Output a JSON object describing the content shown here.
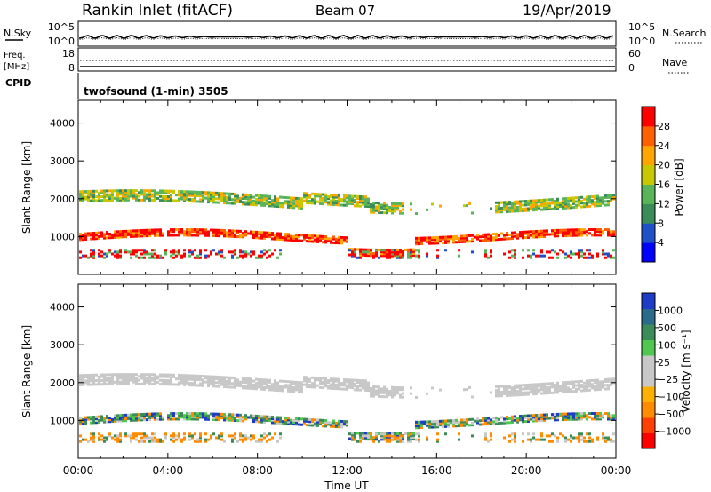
{
  "header": {
    "station": "Rankin Inlet (fitACF)",
    "beam": "Beam 07",
    "date": "19/Apr/2019"
  },
  "noise_panel": {
    "left_label": "N.Sky",
    "left_ticks": [
      "10^5",
      "10^0"
    ],
    "right_ticks": [
      "10^5",
      "10^0"
    ],
    "right_label": "N.Search"
  },
  "freq_panel": {
    "label_line1": "Freq.",
    "label_line2": "[MHz]",
    "left_ticks": [
      "18",
      "8"
    ],
    "right_ticks": [
      "60",
      "0"
    ],
    "right_label": "Nave"
  },
  "cpid": {
    "label": "CPID",
    "program": "twofsound (1-min) 3505"
  },
  "colors": {
    "power_scale": [
      "#0000ff",
      "#2050c8",
      "#3c8c5a",
      "#5ab45a",
      "#c8c800",
      "#ffa500",
      "#ff6000",
      "#ff0000"
    ],
    "velocity_scale": [
      "#ff0000",
      "#ff4000",
      "#ff8c00",
      "#ffb000",
      "#c8c8c8",
      "#c8c8c8",
      "#50c850",
      "#3c8c5a",
      "#2a6a8a",
      "#1e3cc8"
    ],
    "ground_scatter": "#c8c8c8"
  },
  "chart_data": [
    {
      "type": "heatmap",
      "name": "power",
      "ylabel": "Slant Range [km]",
      "yticks": [
        1000,
        2000,
        3000,
        4000
      ],
      "xticks": [
        "00:00",
        "04:00",
        "08:00",
        "12:00",
        "16:00",
        "20:00",
        "00:00"
      ],
      "colorbar": {
        "label": "Power [dB]",
        "ticks": [
          "4",
          "8",
          "12",
          "16",
          "20",
          "24",
          "28"
        ]
      }
    },
    {
      "type": "heatmap",
      "name": "velocity",
      "ylabel": "Slant Range [km]",
      "yticks": [
        1000,
        2000,
        3000,
        4000
      ],
      "xticks": [
        "00:00",
        "04:00",
        "08:00",
        "12:00",
        "16:00",
        "20:00",
        "00:00"
      ],
      "xlabel": "Time UT",
      "colorbar": {
        "label": "Velocity [m s⁻¹]",
        "ticks": [
          "1000",
          "500",
          "100",
          "25",
          "−25",
          "−100",
          "−500",
          "−1000"
        ]
      }
    }
  ]
}
